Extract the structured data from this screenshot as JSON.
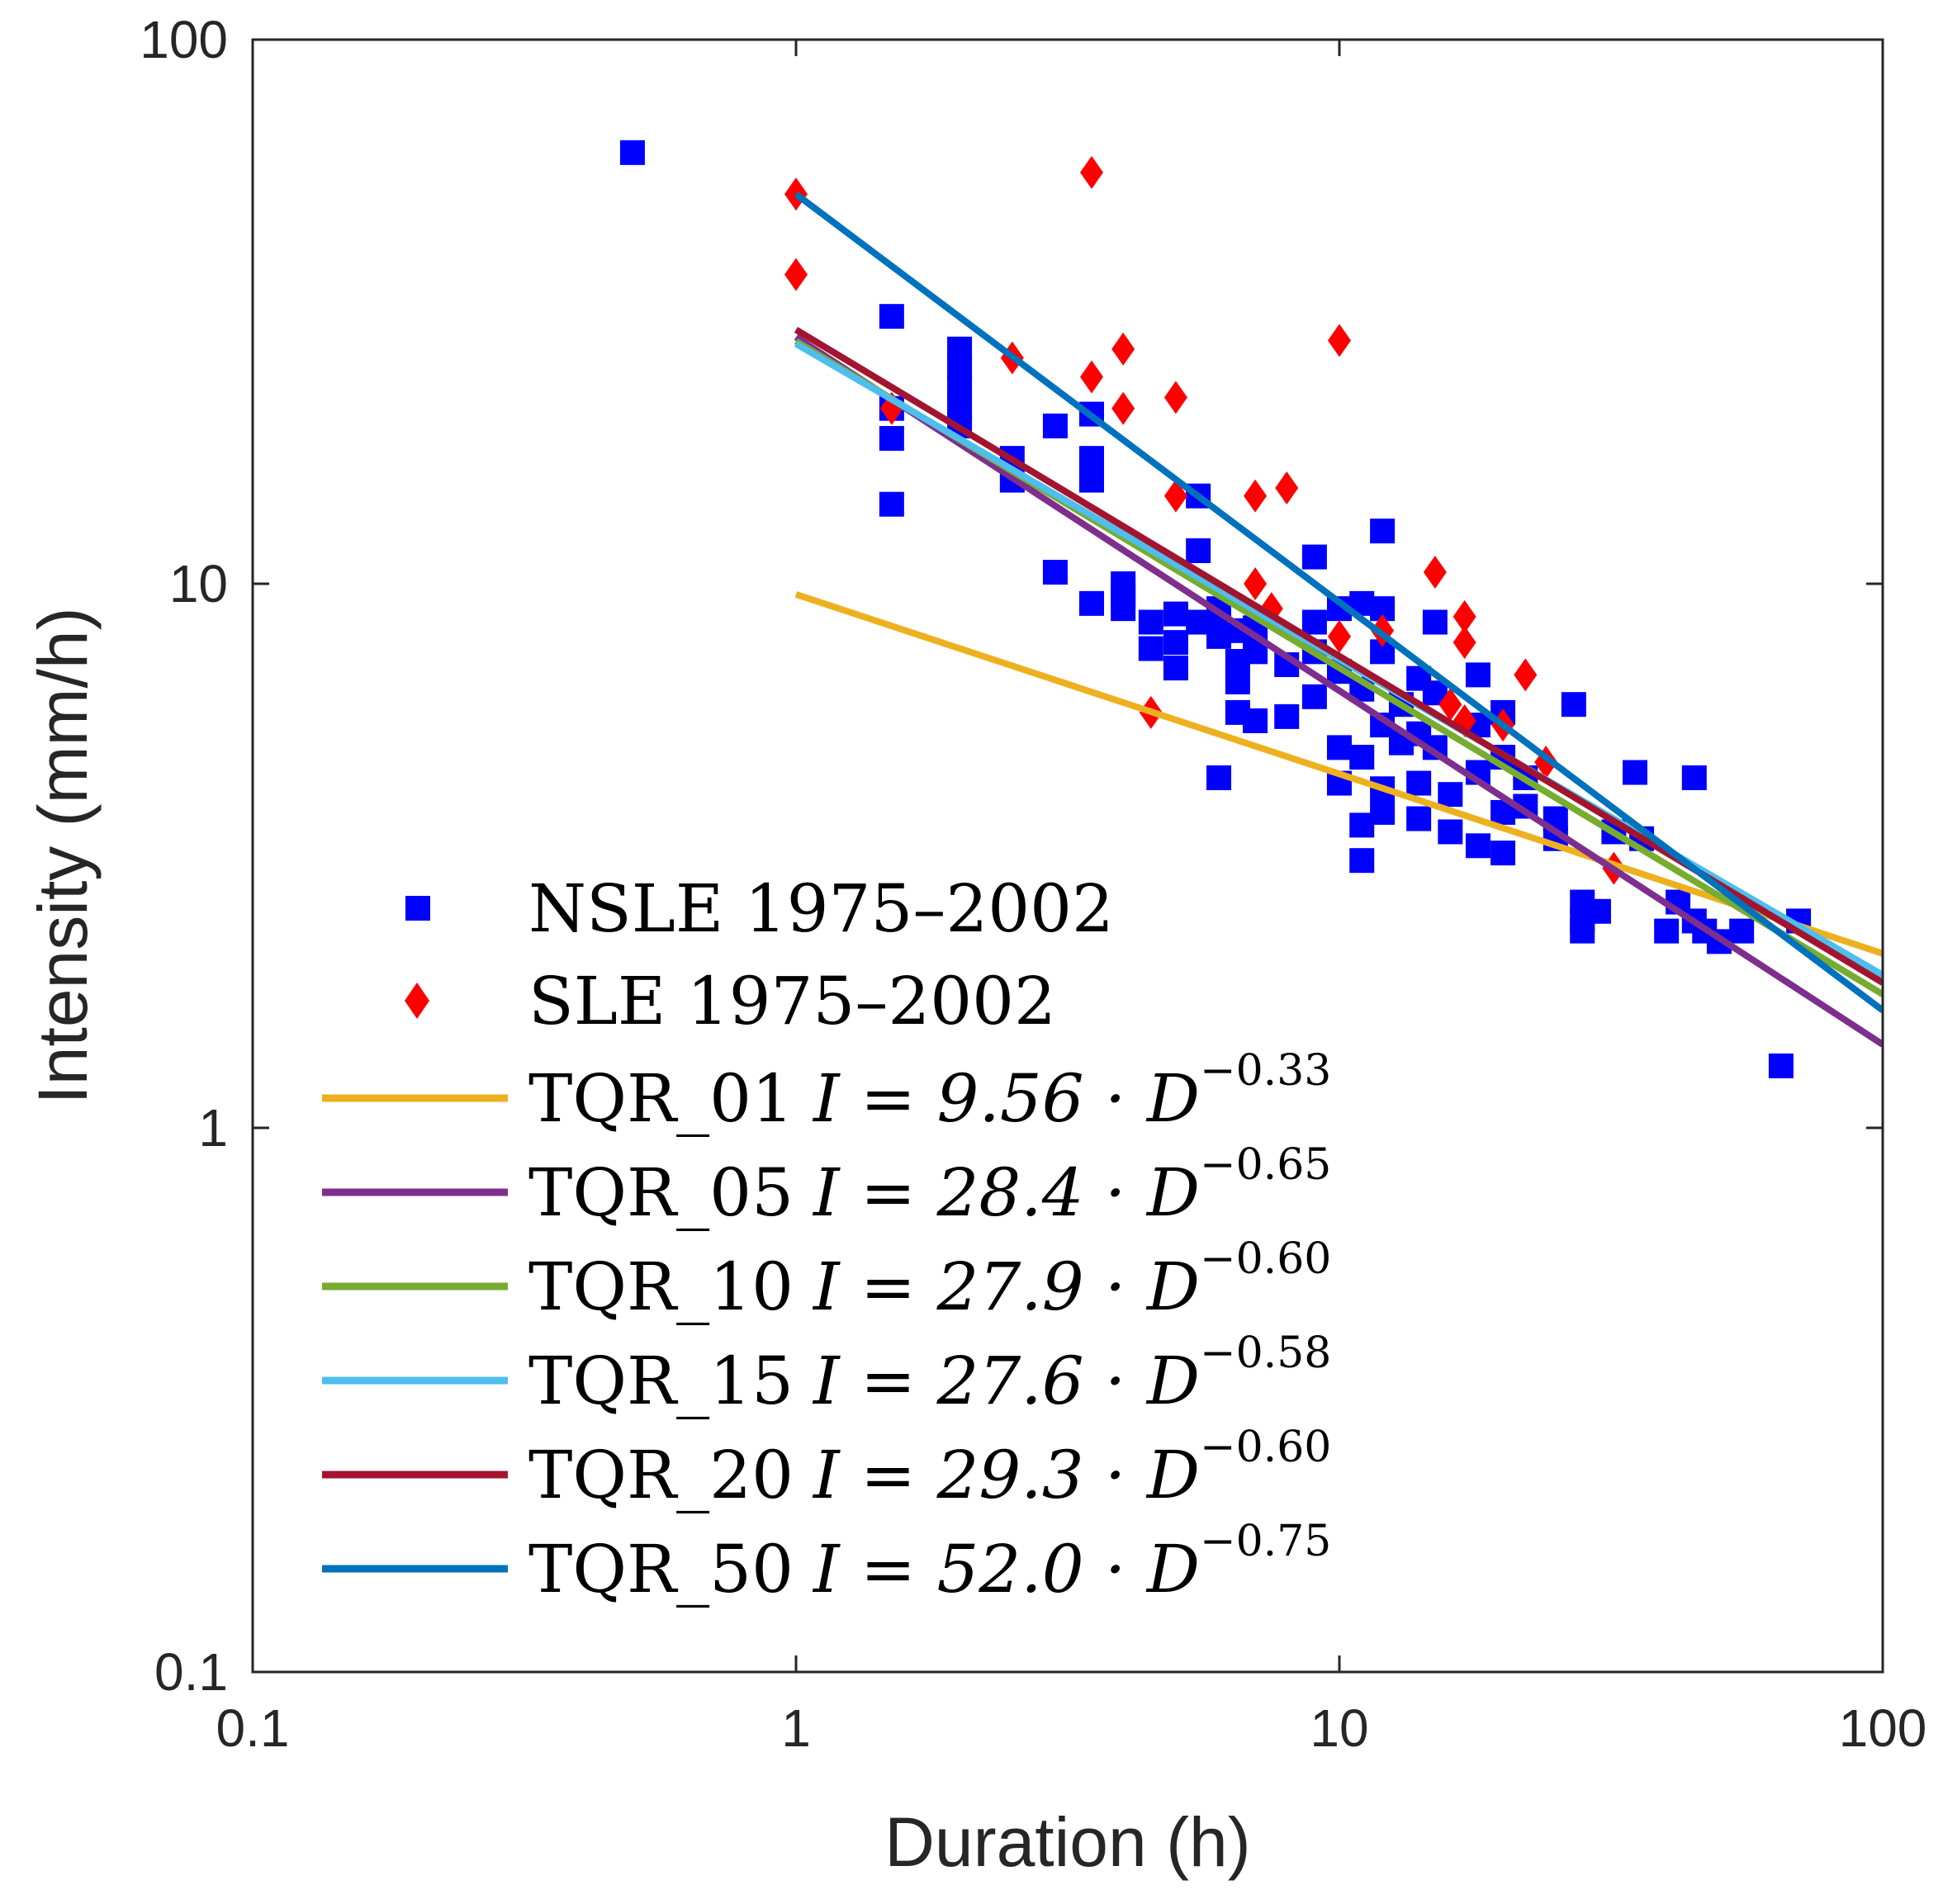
{
  "chart_data": {
    "type": "scatter",
    "title": "",
    "xlabel": "Duration (h)",
    "ylabel": "Intensity (mm/h)",
    "xscale": "log",
    "yscale": "log",
    "xlim": [
      0.1,
      100
    ],
    "ylim": [
      0.1,
      100
    ],
    "xticks": [
      {
        "value": 0.1,
        "label": "0.1"
      },
      {
        "value": 1,
        "label": "1"
      },
      {
        "value": 10,
        "label": "10"
      },
      {
        "value": 100,
        "label": "100"
      }
    ],
    "yticks": [
      {
        "value": 0.1,
        "label": "0.1"
      },
      {
        "value": 1,
        "label": "1"
      },
      {
        "value": 10,
        "label": "10"
      },
      {
        "value": 100,
        "label": "100"
      }
    ],
    "grid": false,
    "legend_position": "bottom-left",
    "scatter_series": [
      {
        "name": "NSLE 1975–2002",
        "marker": "square",
        "color": "#0000ff",
        "points": [
          [
            0.5,
            62
          ],
          [
            1.5,
            31
          ],
          [
            1.5,
            21
          ],
          [
            1.5,
            18.5
          ],
          [
            1.5,
            14
          ],
          [
            2,
            27
          ],
          [
            2,
            25
          ],
          [
            2,
            23
          ],
          [
            2,
            21
          ],
          [
            2,
            19.5
          ],
          [
            2.5,
            17
          ],
          [
            2.5,
            15.5
          ],
          [
            3,
            19.5
          ],
          [
            3,
            10.5
          ],
          [
            3.5,
            20.5
          ],
          [
            3.5,
            17
          ],
          [
            3.5,
            15.5
          ],
          [
            3.5,
            9.2
          ],
          [
            4,
            10
          ],
          [
            4,
            9.5
          ],
          [
            4,
            9
          ],
          [
            4.5,
            8.5
          ],
          [
            4.5,
            7.6
          ],
          [
            5,
            8.8
          ],
          [
            5,
            7.8
          ],
          [
            5,
            7
          ],
          [
            5.5,
            14.5
          ],
          [
            5.5,
            11.5
          ],
          [
            5.5,
            8.5
          ],
          [
            6,
            9
          ],
          [
            6,
            8.4
          ],
          [
            6,
            8
          ],
          [
            6,
            4.4
          ],
          [
            6.5,
            8.2
          ],
          [
            6.5,
            7.2
          ],
          [
            6.5,
            6.6
          ],
          [
            6.5,
            5.8
          ],
          [
            7,
            8.3
          ],
          [
            7,
            7.5
          ],
          [
            7,
            5.6
          ],
          [
            8,
            7.1
          ],
          [
            8,
            5.7
          ],
          [
            9,
            11.2
          ],
          [
            9,
            8.5
          ],
          [
            9,
            7.5
          ],
          [
            9,
            6.2
          ],
          [
            10,
            9
          ],
          [
            10,
            6.9
          ],
          [
            10,
            5
          ],
          [
            10,
            4.3
          ],
          [
            11,
            9.2
          ],
          [
            11,
            6.4
          ],
          [
            11,
            4.8
          ],
          [
            11,
            3.6
          ],
          [
            11,
            3.1
          ],
          [
            12,
            12.5
          ],
          [
            12,
            9
          ],
          [
            12,
            7.5
          ],
          [
            12,
            5.5
          ],
          [
            12,
            4.2
          ],
          [
            12,
            3.8
          ],
          [
            13,
            6
          ],
          [
            13,
            5.1
          ],
          [
            14,
            6.7
          ],
          [
            14,
            5.3
          ],
          [
            14,
            4.3
          ],
          [
            14,
            3.7
          ],
          [
            15,
            8.5
          ],
          [
            15,
            6.3
          ],
          [
            15,
            5
          ],
          [
            16,
            3.5
          ],
          [
            16,
            4.1
          ],
          [
            18,
            6.8
          ],
          [
            18,
            5.5
          ],
          [
            18,
            4.5
          ],
          [
            18,
            3.3
          ],
          [
            20,
            5.8
          ],
          [
            20,
            4.8
          ],
          [
            20,
            3.8
          ],
          [
            20,
            3.2
          ],
          [
            22,
            4.4
          ],
          [
            22,
            3.9
          ],
          [
            25,
            3.7
          ],
          [
            25,
            3.4
          ],
          [
            27,
            6
          ],
          [
            28,
            2.6
          ],
          [
            28,
            2.4
          ],
          [
            28,
            2.3
          ],
          [
            30,
            2.5
          ],
          [
            32,
            3.5
          ],
          [
            35,
            4.5
          ],
          [
            36,
            3.4
          ],
          [
            40,
            2.3
          ],
          [
            42,
            2.6
          ],
          [
            45,
            4.4
          ],
          [
            45,
            2.4
          ],
          [
            47,
            2.3
          ],
          [
            50,
            2.2
          ],
          [
            55,
            2.3
          ],
          [
            65,
            1.3
          ],
          [
            70,
            2.4
          ]
        ]
      },
      {
        "name": "SLE 1975–2002",
        "marker": "diamond",
        "color": "#ff0000",
        "points": [
          [
            1,
            52
          ],
          [
            1,
            37
          ],
          [
            1.5,
            21
          ],
          [
            2.5,
            26
          ],
          [
            3.5,
            57
          ],
          [
            3.5,
            24
          ],
          [
            4,
            27
          ],
          [
            4,
            21
          ],
          [
            4.5,
            5.8
          ],
          [
            5,
            22
          ],
          [
            5,
            14.5
          ],
          [
            7,
            14.5
          ],
          [
            7,
            10
          ],
          [
            7.5,
            9
          ],
          [
            8,
            15
          ],
          [
            10,
            28
          ],
          [
            10,
            8
          ],
          [
            12,
            8.2
          ],
          [
            15,
            10.5
          ],
          [
            16,
            6
          ],
          [
            17,
            8.7
          ],
          [
            17,
            7.8
          ],
          [
            17,
            5.6
          ],
          [
            20,
            5.5
          ],
          [
            22,
            6.8
          ],
          [
            24,
            4.7
          ],
          [
            32,
            3
          ]
        ]
      }
    ],
    "line_series": [
      {
        "name": "TQR_01",
        "formula_prefix": "TQR_01",
        "coef_text": "I = 9.56 · D",
        "exp_text": "−0.33",
        "a": 9.56,
        "b": -0.33,
        "color": "#edb120",
        "x_range": [
          1,
          100
        ]
      },
      {
        "name": "TQR_05",
        "formula_prefix": "TQR_05",
        "coef_text": "I = 28.4 · D",
        "exp_text": "−0.65",
        "a": 28.4,
        "b": -0.65,
        "color": "#7e2f8e",
        "x_range": [
          1,
          100
        ]
      },
      {
        "name": "TQR_10",
        "formula_prefix": "TQR_10",
        "coef_text": "I = 27.9 · D",
        "exp_text": "−0.60",
        "a": 27.9,
        "b": -0.6,
        "color": "#77ac30",
        "x_range": [
          1,
          100
        ]
      },
      {
        "name": "TQR_15",
        "formula_prefix": "TQR_15",
        "coef_text": "I = 27.6 · D",
        "exp_text": "−0.58",
        "a": 27.6,
        "b": -0.58,
        "color": "#4dbeee",
        "x_range": [
          1,
          100
        ]
      },
      {
        "name": "TQR_20",
        "formula_prefix": "TQR_20",
        "coef_text": "I = 29.3 · D",
        "exp_text": "−0.60",
        "a": 29.3,
        "b": -0.6,
        "color": "#a2142f",
        "x_range": [
          1,
          100
        ]
      },
      {
        "name": "TQR_50",
        "formula_prefix": "TQR_50",
        "coef_text": "I = 52.0 · D",
        "exp_text": "−0.75",
        "a": 52.0,
        "b": -0.75,
        "color": "#0072bd",
        "x_range": [
          1,
          100
        ]
      }
    ]
  }
}
